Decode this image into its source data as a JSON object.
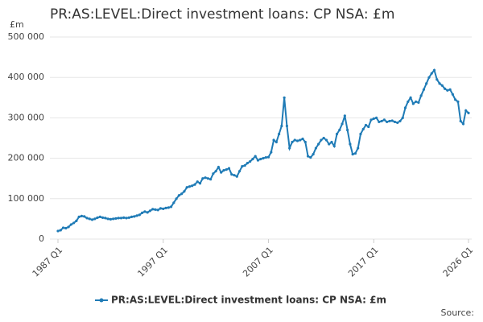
{
  "chart_data": {
    "type": "line",
    "title": "PR:AS:LEVEL:Direct investment loans: CP NSA: £m",
    "y_unit": "£m",
    "source": "Source:",
    "categories": [
      "1987 Q1",
      null,
      null,
      null,
      null,
      null,
      null,
      null,
      null,
      null,
      null,
      null,
      null,
      null,
      null,
      null,
      null,
      null,
      null,
      null,
      null,
      null,
      null,
      null,
      null,
      null,
      null,
      null,
      null,
      null,
      null,
      null,
      null,
      null,
      null,
      null,
      null,
      null,
      null,
      null,
      "1997 Q1",
      null,
      null,
      null,
      null,
      null,
      null,
      null,
      null,
      null,
      null,
      null,
      null,
      null,
      null,
      null,
      null,
      null,
      null,
      null,
      null,
      null,
      null,
      null,
      null,
      null,
      null,
      null,
      null,
      null,
      null,
      null,
      null,
      null,
      null,
      null,
      null,
      null,
      null,
      null,
      "2007 Q1",
      null,
      null,
      null,
      null,
      null,
      null,
      null,
      null,
      null,
      null,
      null,
      null,
      null,
      null,
      null,
      null,
      null,
      null,
      null,
      null,
      null,
      null,
      null,
      null,
      null,
      null,
      null,
      null,
      null,
      null,
      null,
      null,
      null,
      null,
      null,
      null,
      null,
      null,
      null,
      "2017 Q1",
      null,
      null,
      null,
      null,
      null,
      null,
      null,
      null,
      null,
      null,
      null,
      null,
      null,
      null,
      null,
      null,
      null,
      null,
      null,
      null,
      null,
      null,
      null,
      null,
      null,
      null,
      null,
      null,
      null,
      null,
      null,
      null,
      null,
      null,
      null,
      "2026 Q1"
    ],
    "series": [
      {
        "name": "PR:AS:LEVEL:Direct investment loans: CP NSA: £m",
        "color": "#1f7bb6",
        "values": [
          20000,
          22000,
          28000,
          27000,
          30000,
          36000,
          40000,
          45000,
          55000,
          57000,
          56000,
          52000,
          50000,
          48000,
          50000,
          53000,
          55000,
          53000,
          52000,
          50000,
          49000,
          50000,
          51000,
          52000,
          52000,
          53000,
          52000,
          53000,
          55000,
          56000,
          58000,
          60000,
          65000,
          68000,
          66000,
          70000,
          74000,
          73000,
          72000,
          76000,
          75000,
          77000,
          78000,
          80000,
          90000,
          100000,
          108000,
          112000,
          118000,
          128000,
          130000,
          132000,
          135000,
          142000,
          138000,
          150000,
          152000,
          150000,
          148000,
          162000,
          168000,
          178000,
          165000,
          170000,
          172000,
          175000,
          160000,
          158000,
          155000,
          168000,
          180000,
          182000,
          188000,
          192000,
          198000,
          205000,
          195000,
          198000,
          200000,
          202000,
          203000,
          215000,
          245000,
          240000,
          260000,
          280000,
          350000,
          280000,
          225000,
          240000,
          245000,
          243000,
          245000,
          248000,
          240000,
          205000,
          202000,
          210000,
          225000,
          235000,
          245000,
          250000,
          245000,
          235000,
          240000,
          230000,
          260000,
          270000,
          285000,
          305000,
          270000,
          235000,
          210000,
          212000,
          225000,
          260000,
          272000,
          282000,
          278000,
          295000,
          298000,
          300000,
          290000,
          292000,
          295000,
          290000,
          292000,
          293000,
          290000,
          288000,
          292000,
          300000,
          325000,
          340000,
          350000,
          335000,
          340000,
          338000,
          355000,
          370000,
          385000,
          400000,
          410000,
          418000,
          395000,
          385000,
          380000,
          372000,
          368000,
          370000,
          358000,
          345000,
          340000,
          292000,
          285000,
          318000,
          312000
        ]
      }
    ],
    "ylim": [
      0,
      500000
    ],
    "yticks": [
      0,
      {
        "value": 100000,
        "label": "100 000"
      },
      {
        "value": 200000,
        "label": "200 000"
      },
      {
        "value": 300000,
        "label": "300 000"
      },
      {
        "value": 400000,
        "label": "400 000"
      },
      {
        "value": 500000,
        "label": "500 000"
      }
    ],
    "grid": true
  }
}
